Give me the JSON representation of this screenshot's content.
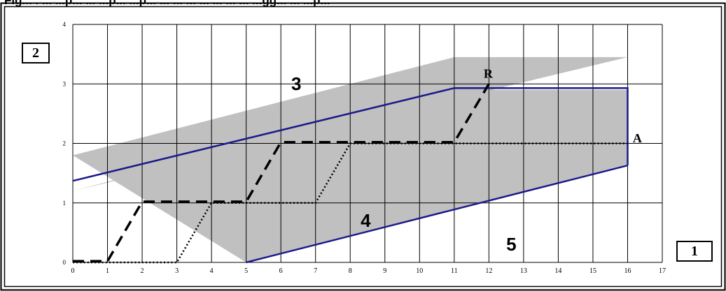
{
  "header": {
    "caption": "Fig... . ... ...p... ... ...p... ...p... ... ... ... ... ... ... ... ...gg... ... ...p..."
  },
  "box_labels": {
    "y_box": "2",
    "x_box": "1"
  },
  "chart_data": {
    "type": "line",
    "xlim": [
      0,
      17
    ],
    "ylim": [
      0,
      4
    ],
    "x_ticks": [
      "0",
      "1",
      "2",
      "3",
      "4",
      "5",
      "6",
      "7",
      "8",
      "9",
      "10",
      "11",
      "12",
      "13",
      "14",
      "15",
      "16",
      "17"
    ],
    "y_ticks": [
      "0",
      "1",
      "2",
      "3",
      "4"
    ],
    "grid": true,
    "band": {
      "color": "#c0c0c0",
      "upper": [
        [
          0,
          1.8
        ],
        [
          11,
          3.45
        ],
        [
          16,
          3.45
        ]
      ],
      "lower": [
        [
          0,
          1.2
        ],
        [
          11,
          2.9
        ],
        [
          16,
          2.9
        ],
        [
          16,
          1.65
        ],
        [
          5,
          0
        ]
      ]
    },
    "series": [
      {
        "style": "solid",
        "color": "#1a1a8c",
        "x": [
          0,
          11,
          16,
          16
        ],
        "y": [
          1.37,
          2.93,
          2.93,
          1.63
        ]
      },
      {
        "style": "solid",
        "color": "#1a1a8c",
        "x": [
          5,
          16
        ],
        "y": [
          0,
          1.63
        ]
      },
      {
        "style": "dashed",
        "color": "#000000",
        "x": [
          0,
          1,
          2,
          5,
          6,
          11,
          12
        ],
        "y": [
          0.02,
          0.02,
          1.02,
          1.02,
          2.02,
          2.02,
          3.0
        ]
      },
      {
        "style": "dotted",
        "color": "#000000",
        "x": [
          0,
          3,
          4,
          7,
          8,
          16
        ],
        "y": [
          0,
          0,
          1.0,
          1.0,
          2.0,
          2.0
        ]
      }
    ],
    "annotations": [
      {
        "text": "3",
        "x": 6.3,
        "y": 2.9,
        "font": "sans"
      },
      {
        "text": "4",
        "x": 8.3,
        "y": 0.6,
        "font": "sans"
      },
      {
        "text": "5",
        "x": 12.5,
        "y": 0.2,
        "font": "sans"
      },
      {
        "text": "R",
        "x": 11.85,
        "y": 3.1,
        "font": "serif"
      },
      {
        "text": "A",
        "x": 16.15,
        "y": 2.02,
        "font": "serif"
      }
    ]
  }
}
